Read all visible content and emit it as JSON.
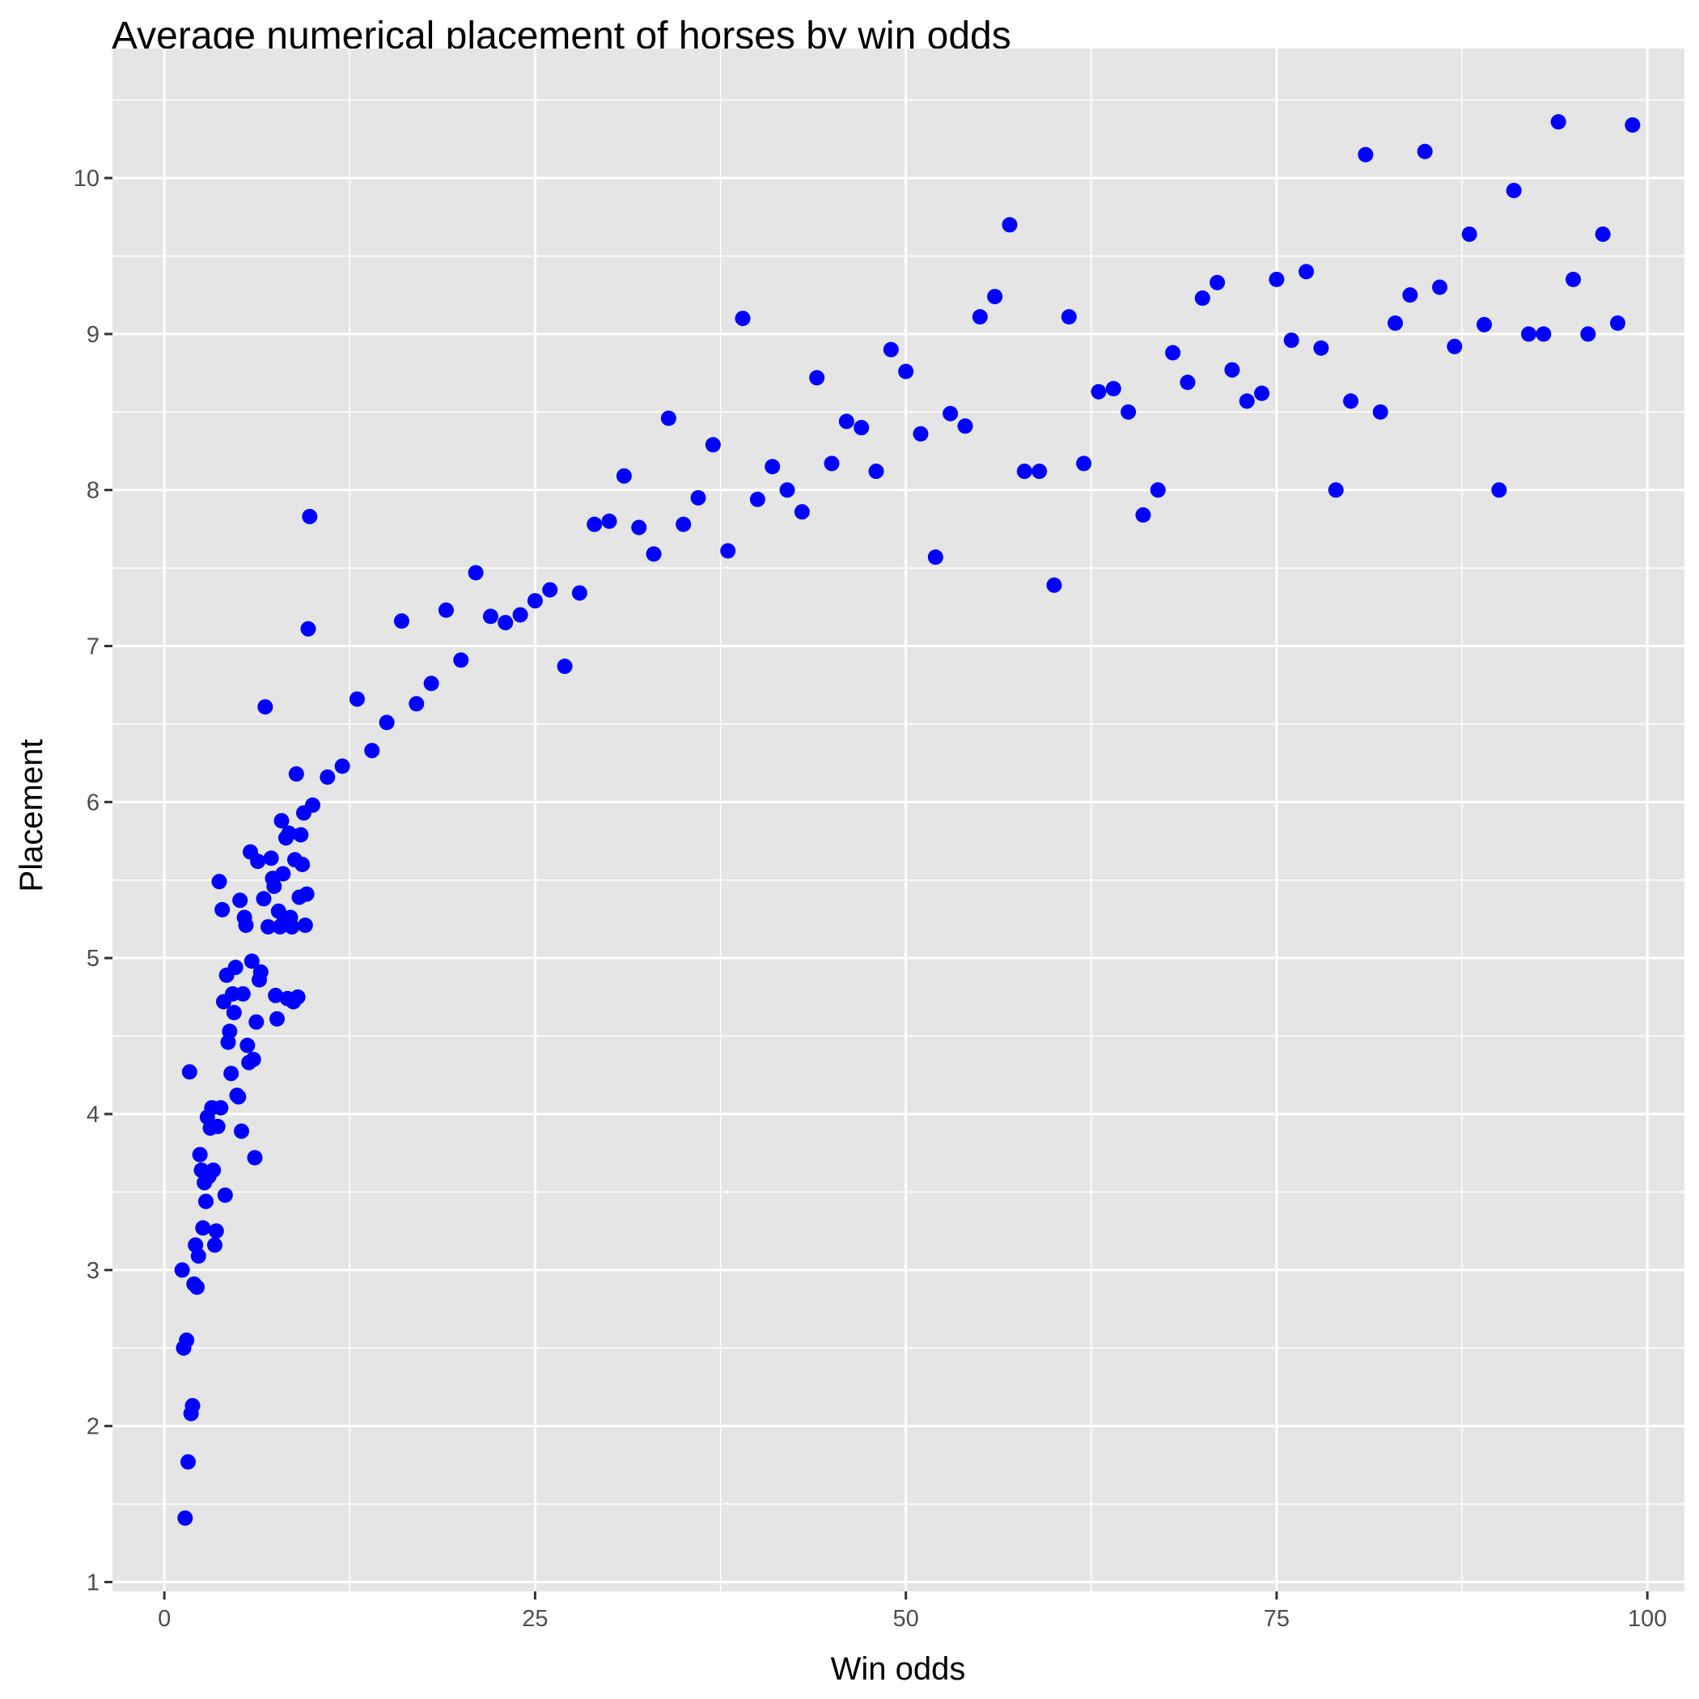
{
  "chart_data": {
    "type": "scatter",
    "title": "Average numerical placement of horses by win odds",
    "xlabel": "Win odds",
    "ylabel": "Placement",
    "xlim": [
      -3.5,
      102.5
    ],
    "ylim": [
      0.94,
      10.83
    ],
    "x_ticks": [
      0,
      25,
      50,
      75,
      100
    ],
    "y_ticks": [
      1,
      2,
      3,
      4,
      5,
      6,
      7,
      8,
      9,
      10
    ],
    "grid": true,
    "point_color": "#0000ff",
    "points": [
      [
        1.2,
        3.0
      ],
      [
        1.3,
        2.5
      ],
      [
        1.4,
        1.41
      ],
      [
        1.5,
        2.55
      ],
      [
        1.6,
        1.77
      ],
      [
        1.7,
        4.27
      ],
      [
        1.8,
        2.08
      ],
      [
        1.9,
        2.13
      ],
      [
        2.0,
        2.91
      ],
      [
        2.1,
        3.16
      ],
      [
        2.2,
        2.89
      ],
      [
        2.3,
        3.09
      ],
      [
        2.4,
        3.74
      ],
      [
        2.5,
        3.64
      ],
      [
        2.6,
        3.27
      ],
      [
        2.7,
        3.56
      ],
      [
        2.8,
        3.44
      ],
      [
        2.9,
        3.98
      ],
      [
        3.0,
        3.6
      ],
      [
        3.1,
        3.91
      ],
      [
        3.2,
        4.04
      ],
      [
        3.3,
        3.64
      ],
      [
        3.4,
        3.16
      ],
      [
        3.5,
        3.25
      ],
      [
        3.6,
        3.92
      ],
      [
        3.7,
        5.49
      ],
      [
        3.8,
        4.04
      ],
      [
        3.9,
        5.31
      ],
      [
        4.0,
        4.72
      ],
      [
        4.1,
        3.48
      ],
      [
        4.2,
        4.89
      ],
      [
        4.3,
        4.46
      ],
      [
        4.4,
        4.53
      ],
      [
        4.5,
        4.26
      ],
      [
        4.6,
        4.77
      ],
      [
        4.7,
        4.65
      ],
      [
        4.8,
        4.94
      ],
      [
        4.9,
        4.12
      ],
      [
        5.0,
        4.11
      ],
      [
        5.1,
        5.37
      ],
      [
        5.2,
        3.89
      ],
      [
        5.3,
        4.77
      ],
      [
        5.4,
        5.26
      ],
      [
        5.5,
        5.21
      ],
      [
        5.6,
        4.44
      ],
      [
        5.7,
        4.33
      ],
      [
        5.8,
        5.68
      ],
      [
        5.9,
        4.98
      ],
      [
        6.0,
        4.35
      ],
      [
        6.1,
        3.72
      ],
      [
        6.2,
        4.59
      ],
      [
        6.3,
        5.62
      ],
      [
        6.4,
        4.86
      ],
      [
        6.5,
        4.91
      ],
      [
        6.7,
        5.38
      ],
      [
        6.8,
        6.61
      ],
      [
        7.0,
        5.2
      ],
      [
        7.2,
        5.64
      ],
      [
        7.3,
        5.51
      ],
      [
        7.4,
        5.46
      ],
      [
        7.5,
        4.76
      ],
      [
        7.6,
        4.61
      ],
      [
        7.7,
        5.3
      ],
      [
        7.8,
        5.2
      ],
      [
        7.9,
        5.88
      ],
      [
        8.0,
        5.54
      ],
      [
        8.1,
        5.25
      ],
      [
        8.2,
        5.77
      ],
      [
        8.3,
        4.74
      ],
      [
        8.4,
        5.8
      ],
      [
        8.5,
        5.26
      ],
      [
        8.6,
        5.2
      ],
      [
        8.7,
        4.72
      ],
      [
        8.8,
        5.63
      ],
      [
        8.9,
        6.18
      ],
      [
        9.0,
        4.75
      ],
      [
        9.1,
        5.39
      ],
      [
        9.2,
        5.79
      ],
      [
        9.3,
        5.6
      ],
      [
        9.4,
        5.93
      ],
      [
        9.5,
        5.21
      ],
      [
        9.6,
        5.41
      ],
      [
        9.7,
        7.11
      ],
      [
        9.8,
        7.83
      ],
      [
        10.0,
        5.98
      ],
      [
        11,
        6.16
      ],
      [
        12,
        6.23
      ],
      [
        13,
        6.66
      ],
      [
        14,
        6.33
      ],
      [
        15,
        6.51
      ],
      [
        16,
        7.16
      ],
      [
        17,
        6.63
      ],
      [
        18,
        6.76
      ],
      [
        19,
        7.23
      ],
      [
        20,
        6.91
      ],
      [
        21,
        7.47
      ],
      [
        22,
        7.19
      ],
      [
        23,
        7.15
      ],
      [
        24,
        7.2
      ],
      [
        25,
        7.29
      ],
      [
        26,
        7.36
      ],
      [
        27,
        6.87
      ],
      [
        28,
        7.34
      ],
      [
        29,
        7.78
      ],
      [
        30,
        7.8
      ],
      [
        31,
        8.09
      ],
      [
        32,
        7.76
      ],
      [
        33,
        7.59
      ],
      [
        34,
        8.46
      ],
      [
        35,
        7.78
      ],
      [
        36,
        7.95
      ],
      [
        37,
        8.29
      ],
      [
        38,
        7.61
      ],
      [
        39,
        9.1
      ],
      [
        40,
        7.94
      ],
      [
        41,
        8.15
      ],
      [
        42,
        8.0
      ],
      [
        43,
        7.86
      ],
      [
        44,
        8.72
      ],
      [
        45,
        8.17
      ],
      [
        46,
        8.44
      ],
      [
        47,
        8.4
      ],
      [
        48,
        8.12
      ],
      [
        49,
        8.9
      ],
      [
        50,
        8.76
      ],
      [
        51,
        8.36
      ],
      [
        52,
        7.57
      ],
      [
        53,
        8.49
      ],
      [
        54,
        8.41
      ],
      [
        55,
        9.11
      ],
      [
        56,
        9.24
      ],
      [
        57,
        9.7
      ],
      [
        58,
        8.12
      ],
      [
        59,
        8.12
      ],
      [
        60,
        7.39
      ],
      [
        61,
        9.11
      ],
      [
        62,
        8.17
      ],
      [
        63,
        8.63
      ],
      [
        64,
        8.65
      ],
      [
        65,
        8.5
      ],
      [
        66,
        7.84
      ],
      [
        67,
        8.0
      ],
      [
        68,
        8.88
      ],
      [
        69,
        8.69
      ],
      [
        70,
        9.23
      ],
      [
        71,
        9.33
      ],
      [
        72,
        8.77
      ],
      [
        73,
        8.57
      ],
      [
        74,
        8.62
      ],
      [
        75,
        9.35
      ],
      [
        76,
        8.96
      ],
      [
        77,
        9.4
      ],
      [
        78,
        8.91
      ],
      [
        79,
        8.0
      ],
      [
        80,
        8.57
      ],
      [
        81,
        10.15
      ],
      [
        82,
        8.5
      ],
      [
        83,
        9.07
      ],
      [
        84,
        9.25
      ],
      [
        85,
        10.17
      ],
      [
        86,
        9.3
      ],
      [
        87,
        8.92
      ],
      [
        88,
        9.64
      ],
      [
        89,
        9.06
      ],
      [
        90,
        8.0
      ],
      [
        91,
        9.92
      ],
      [
        92,
        9.0
      ],
      [
        93,
        9.0
      ],
      [
        94,
        10.36
      ],
      [
        95,
        9.35
      ],
      [
        96,
        9.0
      ],
      [
        97,
        9.64
      ],
      [
        98,
        9.07
      ],
      [
        99,
        10.34
      ]
    ]
  }
}
